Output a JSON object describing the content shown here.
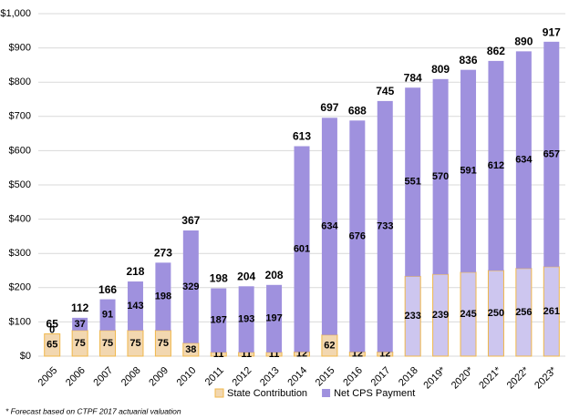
{
  "chart_data": {
    "type": "stacked-bar",
    "categories": [
      "2005",
      "2006",
      "2007",
      "2008",
      "2009",
      "2010",
      "2011",
      "2012",
      "2013",
      "2014",
      "2015",
      "2016",
      "2017",
      "2018",
      "2019*",
      "2020*",
      "2021*",
      "2022*",
      "2023*"
    ],
    "series": [
      {
        "name": "State Contribution",
        "color": "#f2d7b0",
        "edge_color": "#f0b74a",
        "point_colors": [
          "#f2d7b0",
          "#f2d7b0",
          "#f2d7b0",
          "#f2d7b0",
          "#f2d7b0",
          "#f2d7b0",
          "#f2d7b0",
          "#f2d7b0",
          "#f2d7b0",
          "#f2d7b0",
          "#f2d7b0",
          "#f2d7b0",
          "#f2d7b0",
          "#cdc6ef",
          "#cdc6ef",
          "#cdc6ef",
          "#cdc6ef",
          "#cdc6ef",
          "#cdc6ef"
        ],
        "values": [
          65,
          75,
          75,
          75,
          75,
          38,
          11,
          11,
          11,
          12,
          62,
          12,
          12,
          233,
          239,
          245,
          250,
          256,
          261
        ]
      },
      {
        "name": "Net CPS Payment",
        "color": "#9f91de",
        "values": [
          0,
          37,
          91,
          143,
          198,
          329,
          187,
          193,
          197,
          601,
          634,
          676,
          733,
          551,
          570,
          591,
          612,
          634,
          657
        ]
      }
    ],
    "totals": [
      65,
      112,
      166,
      218,
      273,
      367,
      198,
      204,
      208,
      613,
      697,
      688,
      745,
      784,
      809,
      836,
      862,
      890,
      917
    ],
    "ylim": [
      0,
      1000
    ],
    "yticks": [
      {
        "value": 0,
        "label": "$0"
      },
      {
        "value": 100,
        "label": "$100"
      },
      {
        "value": 200,
        "label": "$200"
      },
      {
        "value": 300,
        "label": "$300"
      },
      {
        "value": 400,
        "label": "$400"
      },
      {
        "value": 500,
        "label": "$500"
      },
      {
        "value": 600,
        "label": "$600"
      },
      {
        "value": 700,
        "label": "$700"
      },
      {
        "value": 800,
        "label": "$800"
      },
      {
        "value": 900,
        "label": "$900"
      },
      {
        "value": 1000,
        "label": "$1,000"
      }
    ],
    "grid": true,
    "legend": "bottom",
    "footnote": "* Forecast based on CTPF 2017 actuarial valuation"
  }
}
